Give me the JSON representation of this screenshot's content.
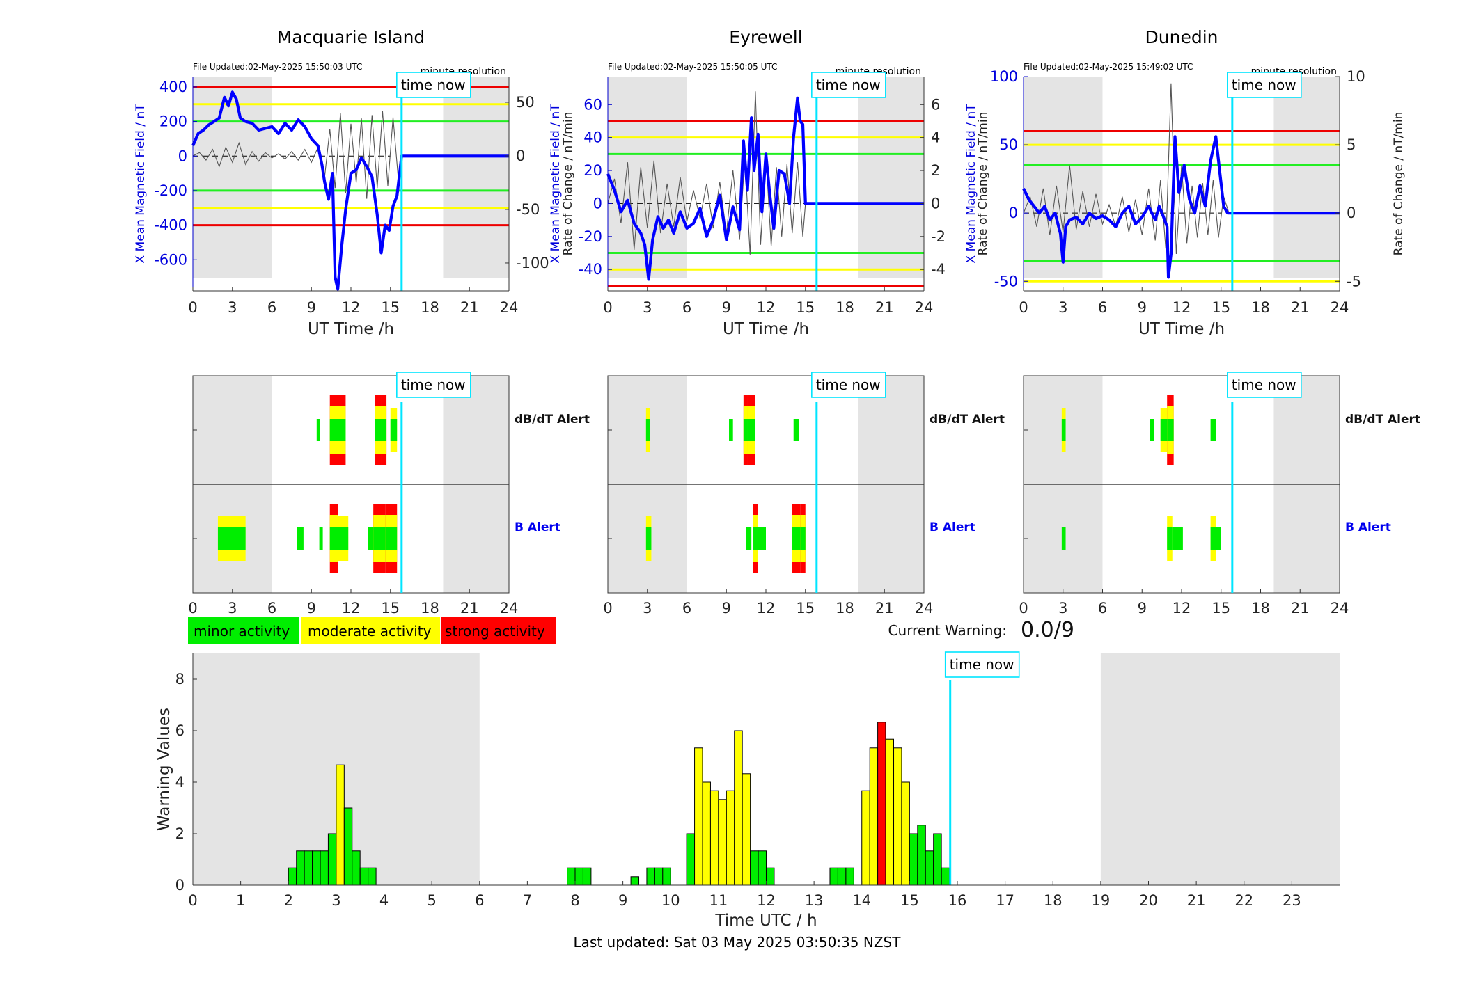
{
  "footer": {
    "last_updated": "Last updated: Sat 03 May 2025 03:50:35 NZST"
  },
  "colors": {
    "minor": "#00ee00",
    "moderate": "#ffff00",
    "strong": "#ff0000",
    "night": "#e4e4e4",
    "now": "#00e5ff",
    "field": "#0000ff",
    "rate": "#555555"
  },
  "labels": {
    "time_now": "time now",
    "minute_resolution": "minute resolution",
    "dbdt_alert": "dB/dT Alert",
    "b_alert": "B Alert",
    "ut_axis": "UT Time /h",
    "rate_axis": "Rate of Change / nT/min",
    "field_axis": "X Mean Magnetic Field / nT"
  },
  "legend": {
    "minor": "minor activity",
    "moderate": "moderate activity",
    "strong": "strong activity"
  },
  "current_warning": {
    "label": "Current Warning:",
    "value": "0.0/9"
  },
  "now_hour": 15.85,
  "chart_data": [
    {
      "type": "line",
      "station": "Macquarie Island",
      "file_updated": "File Updated:02-May-2025 15:50:03 UTC",
      "xlim": [
        0,
        24
      ],
      "xticks": [
        0,
        3,
        6,
        9,
        12,
        15,
        18,
        21,
        24
      ],
      "ylim": [
        -780,
        460
      ],
      "yticks": [
        -600,
        -400,
        -200,
        0,
        200,
        400
      ],
      "y2lim": [
        -126,
        74
      ],
      "y2ticks": [
        -100,
        -50,
        0,
        50
      ],
      "thresholds": {
        "red": [
          400,
          -400
        ],
        "yellow": [
          300,
          -300
        ],
        "green": [
          200,
          -200
        ]
      },
      "night": [
        [
          0,
          6
        ],
        [
          19,
          24
        ]
      ],
      "field": {
        "x": [
          0,
          0.4,
          0.8,
          1.2,
          1.6,
          2.0,
          2.4,
          2.7,
          3.0,
          3.3,
          3.6,
          4.0,
          4.5,
          5.0,
          5.5,
          6.0,
          6.5,
          7.0,
          7.5,
          8.0,
          8.5,
          9.0,
          9.5,
          9.8,
          10.0,
          10.3,
          10.6,
          10.8,
          11.0,
          11.3,
          11.6,
          12.0,
          12.4,
          12.8,
          13.2,
          13.6,
          14.0,
          14.3,
          14.6,
          14.9,
          15.2,
          15.5,
          15.85,
          24
        ],
        "y": [
          60,
          130,
          150,
          180,
          200,
          220,
          340,
          290,
          370,
          330,
          220,
          200,
          190,
          150,
          160,
          170,
          130,
          190,
          150,
          210,
          170,
          100,
          60,
          -50,
          -150,
          -250,
          -100,
          -700,
          -770,
          -520,
          -310,
          -100,
          -80,
          -10,
          -60,
          -120,
          -340,
          -560,
          -400,
          -430,
          -290,
          -230,
          0,
          0
        ]
      },
      "rate": {
        "x": [
          0,
          0.5,
          1.0,
          1.5,
          2.0,
          2.5,
          3.0,
          3.5,
          4.0,
          4.5,
          5.0,
          5.5,
          6.0,
          6.5,
          7.0,
          7.5,
          8.0,
          8.5,
          9.0,
          9.5,
          10.0,
          10.4,
          10.8,
          11.2,
          11.6,
          12.0,
          12.4,
          12.8,
          13.2,
          13.6,
          14.0,
          14.4,
          14.8,
          15.2,
          15.6,
          15.85
        ],
        "y": [
          0,
          3,
          -4,
          6,
          -10,
          8,
          -6,
          12,
          -8,
          4,
          -5,
          3,
          -2,
          2,
          -3,
          4,
          -4,
          6,
          -6,
          8,
          -20,
          25,
          -30,
          40,
          -35,
          30,
          -25,
          35,
          -40,
          38,
          -30,
          42,
          -28,
          36,
          -22,
          0
        ]
      }
    },
    {
      "type": "line",
      "station": "Eyrewell",
      "file_updated": "File Updated:02-May-2025 15:50:05 UTC",
      "xlim": [
        0,
        24
      ],
      "xticks": [
        0,
        3,
        6,
        9,
        12,
        15,
        18,
        21,
        24
      ],
      "ylim": [
        -53,
        77
      ],
      "yticks": [
        -40,
        -20,
        0,
        20,
        40,
        60
      ],
      "y2lim": [
        -5.3,
        7.7
      ],
      "y2ticks": [
        -4,
        -2,
        0,
        2,
        4,
        6
      ],
      "thresholds": {
        "red": [
          50,
          -50
        ],
        "yellow": [
          40,
          -40
        ],
        "green": [
          30,
          -30
        ]
      },
      "night": [
        [
          0,
          6
        ],
        [
          19,
          24
        ]
      ],
      "field": {
        "x": [
          0,
          0.5,
          1.0,
          1.5,
          2.0,
          2.5,
          2.8,
          3.1,
          3.4,
          3.8,
          4.2,
          4.6,
          5.0,
          5.5,
          6.0,
          6.5,
          7.0,
          7.5,
          8.0,
          8.5,
          9.0,
          9.5,
          10.0,
          10.3,
          10.6,
          10.9,
          11.1,
          11.4,
          11.7,
          12.0,
          12.3,
          12.6,
          13.0,
          13.4,
          13.8,
          14.1,
          14.4,
          14.6,
          14.8,
          15.0,
          15.85,
          24
        ],
        "y": [
          18,
          8,
          -5,
          2,
          -12,
          -18,
          -25,
          -46,
          -22,
          -8,
          -15,
          -10,
          -18,
          -5,
          -15,
          -12,
          -3,
          -20,
          -10,
          5,
          -22,
          -2,
          -16,
          38,
          8,
          52,
          20,
          42,
          -5,
          30,
          5,
          -15,
          20,
          18,
          0,
          40,
          64,
          50,
          48,
          0,
          0,
          0
        ]
      },
      "rate": {
        "x": [
          0,
          0.5,
          1.0,
          1.5,
          2.0,
          2.5,
          3.0,
          3.5,
          4.0,
          4.5,
          5.0,
          5.5,
          6.0,
          6.5,
          7.0,
          7.5,
          8.0,
          8.5,
          9.0,
          9.5,
          10.0,
          10.4,
          10.8,
          11.2,
          11.6,
          12.0,
          12.4,
          12.8,
          13.2,
          13.6,
          14.0,
          14.4,
          14.8,
          15.0
        ],
        "y": [
          0,
          1.5,
          -1.2,
          2.5,
          -2.8,
          2.2,
          -1.5,
          2.6,
          -1.8,
          1.2,
          -1.4,
          1.6,
          -1.1,
          0.8,
          -0.9,
          1.2,
          -1.5,
          1.3,
          -1.8,
          2.0,
          -2.2,
          2.8,
          -3.1,
          6.8,
          -2.5,
          3.0,
          -2.6,
          2.2,
          -2.0,
          2.4,
          -1.8,
          2.5,
          -2.0,
          0
        ]
      }
    },
    {
      "type": "line",
      "station": "Dunedin",
      "file_updated": "File Updated:02-May-2025 15:49:02 UTC",
      "xlim": [
        0,
        24
      ],
      "xticks": [
        0,
        3,
        6,
        9,
        12,
        15,
        18,
        21,
        24
      ],
      "ylim": [
        -57,
        100
      ],
      "yticks": [
        -50,
        0,
        50,
        100
      ],
      "y2lim": [
        -5.7,
        10
      ],
      "y2ticks": [
        -5,
        0,
        5,
        10
      ],
      "thresholds": {
        "red": [
          60
        ],
        "yellow": [
          50,
          -50
        ],
        "green": [
          35,
          -35
        ]
      },
      "night": [
        [
          0,
          6
        ],
        [
          19,
          24
        ]
      ],
      "field": {
        "x": [
          0,
          0.4,
          0.8,
          1.2,
          1.6,
          2.0,
          2.4,
          2.8,
          3.0,
          3.2,
          3.5,
          4.0,
          4.5,
          5.0,
          5.5,
          6.0,
          6.5,
          7.0,
          7.5,
          8.0,
          8.5,
          9.0,
          9.5,
          10.0,
          10.3,
          10.6,
          10.9,
          11.0,
          11.2,
          11.5,
          11.8,
          12.2,
          12.6,
          13.0,
          13.4,
          13.8,
          14.2,
          14.6,
          14.9,
          15.2,
          15.5,
          15.85,
          24
        ],
        "y": [
          18,
          10,
          5,
          0,
          5,
          -5,
          0,
          -15,
          -36,
          -10,
          -5,
          -3,
          -8,
          0,
          -4,
          -2,
          -5,
          -10,
          0,
          5,
          -8,
          -3,
          5,
          -5,
          5,
          -2,
          -10,
          -47,
          -30,
          56,
          15,
          35,
          10,
          0,
          20,
          5,
          38,
          56,
          30,
          5,
          0,
          0,
          0
        ]
      },
      "rate": {
        "x": [
          0,
          0.5,
          1.0,
          1.5,
          2.0,
          2.5,
          3.0,
          3.5,
          4.0,
          4.5,
          5.0,
          5.5,
          6.0,
          6.5,
          7.0,
          7.5,
          8.0,
          8.5,
          9.0,
          9.5,
          10.0,
          10.4,
          10.8,
          11.2,
          11.6,
          12.0,
          12.4,
          12.8,
          13.2,
          13.6,
          14.0,
          14.4,
          14.8,
          15.2,
          15.6
        ],
        "y": [
          0,
          1.2,
          -1.0,
          1.8,
          -1.6,
          2.0,
          -1.4,
          3.5,
          -1.2,
          1.6,
          -1.0,
          1.4,
          -0.8,
          0.6,
          -1.0,
          1.2,
          -1.4,
          1.0,
          -1.6,
          1.8,
          -2.0,
          2.4,
          -2.6,
          9.5,
          -3.0,
          3.5,
          -2.2,
          2.0,
          -1.8,
          2.2,
          -1.6,
          2.4,
          -1.8,
          1.2,
          0
        ]
      }
    },
    {
      "type": "alert_timeline",
      "station": "Macquarie Island",
      "xlim": [
        0,
        24
      ],
      "dbdt": [
        [
          9.4,
          9.6,
          "g"
        ],
        [
          10.4,
          11.0,
          "r"
        ],
        [
          11.0,
          11.6,
          "r"
        ],
        [
          13.8,
          14.3,
          "r"
        ],
        [
          14.3,
          14.7,
          "r"
        ],
        [
          15.0,
          15.5,
          "y"
        ]
      ],
      "b": [
        [
          1.9,
          4.0,
          "y"
        ],
        [
          7.9,
          8.4,
          "g"
        ],
        [
          9.6,
          9.8,
          "g"
        ],
        [
          10.4,
          11.0,
          "r"
        ],
        [
          11.0,
          11.8,
          "y"
        ],
        [
          13.3,
          13.7,
          "g"
        ],
        [
          13.7,
          14.6,
          "r"
        ],
        [
          14.6,
          15.5,
          "r"
        ]
      ]
    },
    {
      "type": "alert_timeline",
      "station": "Eyrewell",
      "xlim": [
        0,
        24
      ],
      "dbdt": [
        [
          2.9,
          3.2,
          "y"
        ],
        [
          9.2,
          9.5,
          "g"
        ],
        [
          10.3,
          10.6,
          "r"
        ],
        [
          10.6,
          11.2,
          "r"
        ],
        [
          14.1,
          14.5,
          "g"
        ]
      ],
      "b": [
        [
          2.9,
          3.3,
          "y"
        ],
        [
          10.5,
          10.9,
          "g"
        ],
        [
          11.0,
          11.4,
          "r"
        ],
        [
          11.4,
          12.0,
          "g"
        ],
        [
          14.0,
          14.6,
          "r"
        ],
        [
          14.6,
          15.0,
          "r"
        ]
      ]
    },
    {
      "type": "alert_timeline",
      "station": "Dunedin",
      "xlim": [
        0,
        24
      ],
      "dbdt": [
        [
          2.9,
          3.2,
          "y"
        ],
        [
          9.6,
          9.9,
          "g"
        ],
        [
          10.4,
          10.9,
          "y"
        ],
        [
          10.9,
          11.4,
          "r"
        ],
        [
          14.2,
          14.6,
          "g"
        ]
      ],
      "b": [
        [
          2.9,
          3.2,
          "g"
        ],
        [
          10.9,
          11.3,
          "y"
        ],
        [
          11.3,
          12.1,
          "g"
        ],
        [
          14.2,
          14.6,
          "y"
        ],
        [
          14.6,
          15.0,
          "g"
        ]
      ]
    },
    {
      "type": "bar",
      "title": "",
      "xlabel": "Time UTC / h",
      "ylabel": "Warning Values",
      "xlim": [
        0,
        24
      ],
      "ylim": [
        0,
        9
      ],
      "xticks": [
        0,
        1,
        2,
        3,
        4,
        5,
        6,
        7,
        8,
        9,
        10,
        11,
        12,
        13,
        14,
        15,
        16,
        17,
        18,
        19,
        20,
        21,
        22,
        23
      ],
      "yticks": [
        0,
        2,
        4,
        6,
        8
      ],
      "night": [
        [
          0,
          6
        ],
        [
          19,
          24
        ]
      ],
      "bars": [
        {
          "start": 2.0,
          "value": 0.67,
          "level": "minor"
        },
        {
          "start": 2.167,
          "value": 1.33,
          "level": "minor"
        },
        {
          "start": 2.333,
          "value": 1.33,
          "level": "minor"
        },
        {
          "start": 2.5,
          "value": 1.33,
          "level": "minor"
        },
        {
          "start": 2.667,
          "value": 1.33,
          "level": "minor"
        },
        {
          "start": 2.833,
          "value": 2.0,
          "level": "minor"
        },
        {
          "start": 3.0,
          "value": 4.67,
          "level": "moderate"
        },
        {
          "start": 3.167,
          "value": 3.0,
          "level": "minor"
        },
        {
          "start": 3.333,
          "value": 1.33,
          "level": "minor"
        },
        {
          "start": 3.5,
          "value": 0.67,
          "level": "minor"
        },
        {
          "start": 3.667,
          "value": 0.67,
          "level": "minor"
        },
        {
          "start": 7.833,
          "value": 0.67,
          "level": "minor"
        },
        {
          "start": 8.0,
          "value": 0.67,
          "level": "minor"
        },
        {
          "start": 8.167,
          "value": 0.67,
          "level": "minor"
        },
        {
          "start": 9.167,
          "value": 0.33,
          "level": "minor"
        },
        {
          "start": 9.5,
          "value": 0.67,
          "level": "minor"
        },
        {
          "start": 9.667,
          "value": 0.67,
          "level": "minor"
        },
        {
          "start": 9.833,
          "value": 0.67,
          "level": "minor"
        },
        {
          "start": 10.333,
          "value": 2.0,
          "level": "minor"
        },
        {
          "start": 10.5,
          "value": 5.33,
          "level": "moderate"
        },
        {
          "start": 10.667,
          "value": 4.0,
          "level": "moderate"
        },
        {
          "start": 10.833,
          "value": 3.67,
          "level": "moderate"
        },
        {
          "start": 11.0,
          "value": 3.33,
          "level": "moderate"
        },
        {
          "start": 11.167,
          "value": 3.67,
          "level": "moderate"
        },
        {
          "start": 11.333,
          "value": 6.0,
          "level": "moderate"
        },
        {
          "start": 11.5,
          "value": 4.33,
          "level": "moderate"
        },
        {
          "start": 11.667,
          "value": 1.33,
          "level": "minor"
        },
        {
          "start": 11.833,
          "value": 1.33,
          "level": "minor"
        },
        {
          "start": 12.0,
          "value": 0.67,
          "level": "minor"
        },
        {
          "start": 13.333,
          "value": 0.67,
          "level": "minor"
        },
        {
          "start": 13.5,
          "value": 0.67,
          "level": "minor"
        },
        {
          "start": 13.667,
          "value": 0.67,
          "level": "minor"
        },
        {
          "start": 14.0,
          "value": 3.67,
          "level": "moderate"
        },
        {
          "start": 14.167,
          "value": 5.33,
          "level": "moderate"
        },
        {
          "start": 14.333,
          "value": 6.33,
          "level": "strong"
        },
        {
          "start": 14.5,
          "value": 5.67,
          "level": "moderate"
        },
        {
          "start": 14.667,
          "value": 5.33,
          "level": "moderate"
        },
        {
          "start": 14.833,
          "value": 4.0,
          "level": "moderate"
        },
        {
          "start": 15.0,
          "value": 2.0,
          "level": "minor"
        },
        {
          "start": 15.167,
          "value": 2.33,
          "level": "minor"
        },
        {
          "start": 15.333,
          "value": 1.33,
          "level": "minor"
        },
        {
          "start": 15.5,
          "value": 2.0,
          "level": "minor"
        },
        {
          "start": 15.667,
          "value": 0.67,
          "level": "minor"
        }
      ]
    }
  ]
}
